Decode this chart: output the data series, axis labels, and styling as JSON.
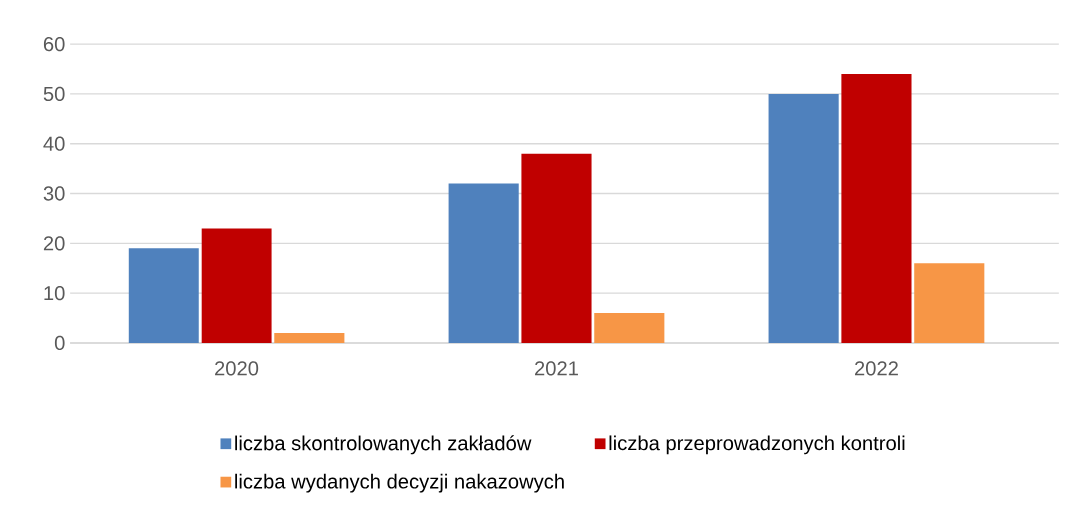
{
  "chart_data": {
    "type": "bar",
    "categories": [
      "2020",
      "2021",
      "2022"
    ],
    "series": [
      {
        "name": "liczba skontrolowanych zakładów",
        "color": "#4f81bd",
        "values": [
          19,
          32,
          50
        ]
      },
      {
        "name": "liczba przeprowadzonych kontroli",
        "color": "#c00000",
        "values": [
          23,
          38,
          54
        ]
      },
      {
        "name": "liczba wydanych decyzji nakazowych",
        "color": "#f79646",
        "values": [
          2,
          6,
          16
        ]
      }
    ],
    "ylim": [
      0,
      60
    ],
    "yticks": [
      0,
      10,
      20,
      30,
      40,
      50,
      60
    ],
    "grid": "y",
    "legend": "bottom"
  }
}
